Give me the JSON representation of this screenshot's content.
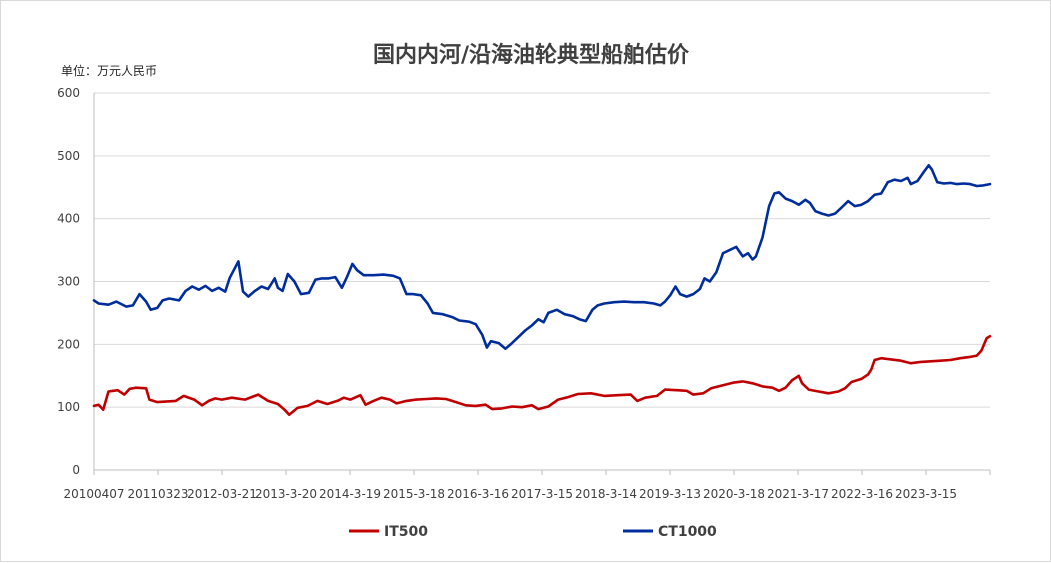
{
  "chart_data": {
    "type": "line",
    "title": "国内内河/沿海油轮典型船舶估价",
    "unit_label": "单位：万元人民币",
    "ylim": [
      0,
      600
    ],
    "y_ticks": [
      "0",
      "100",
      "200",
      "300",
      "400",
      "500",
      "600"
    ],
    "x_ticks": [
      "20100407",
      "20110323",
      "2012-03-21",
      "2013-3-20",
      "2014-3-19",
      "2015-3-18",
      "2016-3-16",
      "2017-3-15",
      "2018-3-14",
      "2019-3-13",
      "2020-3-18",
      "2021-3-17",
      "2022-3-16",
      "2023-3-15"
    ],
    "x_range": [
      2010.26,
      2023.85
    ],
    "grid": true,
    "legend_position": "bottom",
    "series": [
      {
        "name": "IT500",
        "color": "#c00000",
        "points": [
          [
            2010.26,
            102
          ],
          [
            2010.33,
            104
          ],
          [
            2010.4,
            96
          ],
          [
            2010.48,
            125
          ],
          [
            2010.62,
            127
          ],
          [
            2010.72,
            120
          ],
          [
            2010.8,
            129
          ],
          [
            2010.9,
            131
          ],
          [
            2011.05,
            130
          ],
          [
            2011.1,
            112
          ],
          [
            2011.22,
            108
          ],
          [
            2011.5,
            110
          ],
          [
            2011.62,
            118
          ],
          [
            2011.78,
            112
          ],
          [
            2011.9,
            103
          ],
          [
            2012.0,
            110
          ],
          [
            2012.1,
            114
          ],
          [
            2012.2,
            112
          ],
          [
            2012.35,
            115
          ],
          [
            2012.55,
            112
          ],
          [
            2012.75,
            120
          ],
          [
            2012.9,
            110
          ],
          [
            2013.05,
            105
          ],
          [
            2013.15,
            96
          ],
          [
            2013.22,
            88
          ],
          [
            2013.35,
            99
          ],
          [
            2013.5,
            102
          ],
          [
            2013.65,
            110
          ],
          [
            2013.8,
            105
          ],
          [
            2013.95,
            110
          ],
          [
            2014.05,
            115
          ],
          [
            2014.15,
            112
          ],
          [
            2014.3,
            119
          ],
          [
            2014.38,
            104
          ],
          [
            2014.5,
            110
          ],
          [
            2014.62,
            115
          ],
          [
            2014.75,
            112
          ],
          [
            2014.85,
            106
          ],
          [
            2015.0,
            110
          ],
          [
            2015.15,
            112
          ],
          [
            2015.3,
            113
          ],
          [
            2015.45,
            114
          ],
          [
            2015.6,
            113
          ],
          [
            2015.75,
            108
          ],
          [
            2015.9,
            103
          ],
          [
            2016.05,
            102
          ],
          [
            2016.2,
            104
          ],
          [
            2016.3,
            97
          ],
          [
            2016.45,
            98
          ],
          [
            2016.6,
            101
          ],
          [
            2016.75,
            100
          ],
          [
            2016.9,
            103
          ],
          [
            2017.0,
            97
          ],
          [
            2017.15,
            101
          ],
          [
            2017.3,
            112
          ],
          [
            2017.45,
            116
          ],
          [
            2017.6,
            121
          ],
          [
            2017.8,
            122
          ],
          [
            2018.0,
            118
          ],
          [
            2018.2,
            119
          ],
          [
            2018.4,
            120
          ],
          [
            2018.5,
            110
          ],
          [
            2018.62,
            115
          ],
          [
            2018.8,
            118
          ],
          [
            2018.92,
            128
          ],
          [
            2019.1,
            127
          ],
          [
            2019.25,
            126
          ],
          [
            2019.35,
            120
          ],
          [
            2019.5,
            122
          ],
          [
            2019.62,
            130
          ],
          [
            2019.8,
            135
          ],
          [
            2019.95,
            139
          ],
          [
            2020.1,
            141
          ],
          [
            2020.25,
            138
          ],
          [
            2020.4,
            133
          ],
          [
            2020.55,
            131
          ],
          [
            2020.65,
            126
          ],
          [
            2020.75,
            131
          ],
          [
            2020.85,
            143
          ],
          [
            2020.95,
            150
          ],
          [
            2021.0,
            138
          ],
          [
            2021.1,
            128
          ],
          [
            2021.25,
            125
          ],
          [
            2021.4,
            122
          ],
          [
            2021.55,
            125
          ],
          [
            2021.65,
            130
          ],
          [
            2021.75,
            140
          ],
          [
            2021.9,
            145
          ],
          [
            2022.0,
            152
          ],
          [
            2022.05,
            160
          ],
          [
            2022.1,
            175
          ],
          [
            2022.2,
            178
          ],
          [
            2022.35,
            176
          ],
          [
            2022.5,
            174
          ],
          [
            2022.65,
            170
          ],
          [
            2022.8,
            172
          ],
          [
            2022.95,
            173
          ],
          [
            2023.1,
            174
          ],
          [
            2023.25,
            175
          ],
          [
            2023.4,
            178
          ],
          [
            2023.55,
            180
          ],
          [
            2023.65,
            182
          ],
          [
            2023.72,
            190
          ],
          [
            2023.76,
            200
          ],
          [
            2023.8,
            210
          ],
          [
            2023.85,
            213
          ]
        ]
      },
      {
        "name": "CT1000",
        "color": "#002d9c",
        "points": [
          [
            2010.26,
            270
          ],
          [
            2010.33,
            265
          ],
          [
            2010.48,
            263
          ],
          [
            2010.6,
            268
          ],
          [
            2010.75,
            260
          ],
          [
            2010.85,
            262
          ],
          [
            2010.95,
            280
          ],
          [
            2011.05,
            268
          ],
          [
            2011.12,
            255
          ],
          [
            2011.22,
            258
          ],
          [
            2011.3,
            270
          ],
          [
            2011.4,
            273
          ],
          [
            2011.55,
            270
          ],
          [
            2011.65,
            285
          ],
          [
            2011.75,
            292
          ],
          [
            2011.85,
            287
          ],
          [
            2011.95,
            293
          ],
          [
            2012.05,
            285
          ],
          [
            2012.15,
            290
          ],
          [
            2012.25,
            284
          ],
          [
            2012.32,
            306
          ],
          [
            2012.4,
            322
          ],
          [
            2012.45,
            332
          ],
          [
            2012.52,
            284
          ],
          [
            2012.6,
            276
          ],
          [
            2012.7,
            285
          ],
          [
            2012.8,
            292
          ],
          [
            2012.9,
            288
          ],
          [
            2013.0,
            305
          ],
          [
            2013.05,
            290
          ],
          [
            2013.12,
            285
          ],
          [
            2013.2,
            312
          ],
          [
            2013.3,
            300
          ],
          [
            2013.4,
            280
          ],
          [
            2013.52,
            282
          ],
          [
            2013.62,
            303
          ],
          [
            2013.72,
            305
          ],
          [
            2013.82,
            305
          ],
          [
            2013.92,
            307
          ],
          [
            2014.02,
            290
          ],
          [
            2014.1,
            308
          ],
          [
            2014.18,
            328
          ],
          [
            2014.25,
            318
          ],
          [
            2014.35,
            310
          ],
          [
            2014.5,
            310
          ],
          [
            2014.65,
            311
          ],
          [
            2014.8,
            309
          ],
          [
            2014.9,
            305
          ],
          [
            2015.0,
            280
          ],
          [
            2015.1,
            280
          ],
          [
            2015.22,
            278
          ],
          [
            2015.32,
            265
          ],
          [
            2015.4,
            250
          ],
          [
            2015.55,
            248
          ],
          [
            2015.7,
            243
          ],
          [
            2015.8,
            238
          ],
          [
            2015.95,
            236
          ],
          [
            2016.05,
            232
          ],
          [
            2016.15,
            215
          ],
          [
            2016.22,
            195
          ],
          [
            2016.28,
            205
          ],
          [
            2016.4,
            202
          ],
          [
            2016.5,
            193
          ],
          [
            2016.58,
            200
          ],
          [
            2016.7,
            212
          ],
          [
            2016.8,
            222
          ],
          [
            2016.9,
            230
          ],
          [
            2017.0,
            240
          ],
          [
            2017.08,
            235
          ],
          [
            2017.15,
            250
          ],
          [
            2017.28,
            255
          ],
          [
            2017.4,
            248
          ],
          [
            2017.52,
            245
          ],
          [
            2017.62,
            240
          ],
          [
            2017.72,
            237
          ],
          [
            2017.82,
            255
          ],
          [
            2017.9,
            262
          ],
          [
            2018.0,
            265
          ],
          [
            2018.15,
            267
          ],
          [
            2018.3,
            268
          ],
          [
            2018.45,
            267
          ],
          [
            2018.6,
            267
          ],
          [
            2018.75,
            265
          ],
          [
            2018.85,
            262
          ],
          [
            2018.92,
            268
          ],
          [
            2019.0,
            278
          ],
          [
            2019.08,
            292
          ],
          [
            2019.15,
            280
          ],
          [
            2019.25,
            276
          ],
          [
            2019.35,
            280
          ],
          [
            2019.45,
            288
          ],
          [
            2019.52,
            305
          ],
          [
            2019.6,
            300
          ],
          [
            2019.7,
            315
          ],
          [
            2019.8,
            345
          ],
          [
            2019.9,
            350
          ],
          [
            2020.0,
            355
          ],
          [
            2020.1,
            340
          ],
          [
            2020.18,
            345
          ],
          [
            2020.25,
            335
          ],
          [
            2020.3,
            340
          ],
          [
            2020.35,
            355
          ],
          [
            2020.4,
            370
          ],
          [
            2020.5,
            420
          ],
          [
            2020.58,
            440
          ],
          [
            2020.65,
            442
          ],
          [
            2020.75,
            432
          ],
          [
            2020.85,
            428
          ],
          [
            2020.95,
            422
          ],
          [
            2021.05,
            430
          ],
          [
            2021.12,
            425
          ],
          [
            2021.2,
            412
          ],
          [
            2021.3,
            408
          ],
          [
            2021.4,
            405
          ],
          [
            2021.5,
            408
          ],
          [
            2021.6,
            418
          ],
          [
            2021.7,
            428
          ],
          [
            2021.8,
            420
          ],
          [
            2021.9,
            422
          ],
          [
            2022.0,
            428
          ],
          [
            2022.1,
            438
          ],
          [
            2022.2,
            440
          ],
          [
            2022.3,
            458
          ],
          [
            2022.4,
            462
          ],
          [
            2022.5,
            460
          ],
          [
            2022.6,
            465
          ],
          [
            2022.65,
            455
          ],
          [
            2022.75,
            460
          ],
          [
            2022.85,
            475
          ],
          [
            2022.92,
            485
          ],
          [
            2022.97,
            478
          ],
          [
            2023.05,
            458
          ],
          [
            2023.15,
            456
          ],
          [
            2023.25,
            457
          ],
          [
            2023.35,
            455
          ],
          [
            2023.45,
            456
          ],
          [
            2023.55,
            455
          ],
          [
            2023.65,
            452
          ],
          [
            2023.75,
            453
          ],
          [
            2023.85,
            455
          ]
        ]
      }
    ]
  }
}
